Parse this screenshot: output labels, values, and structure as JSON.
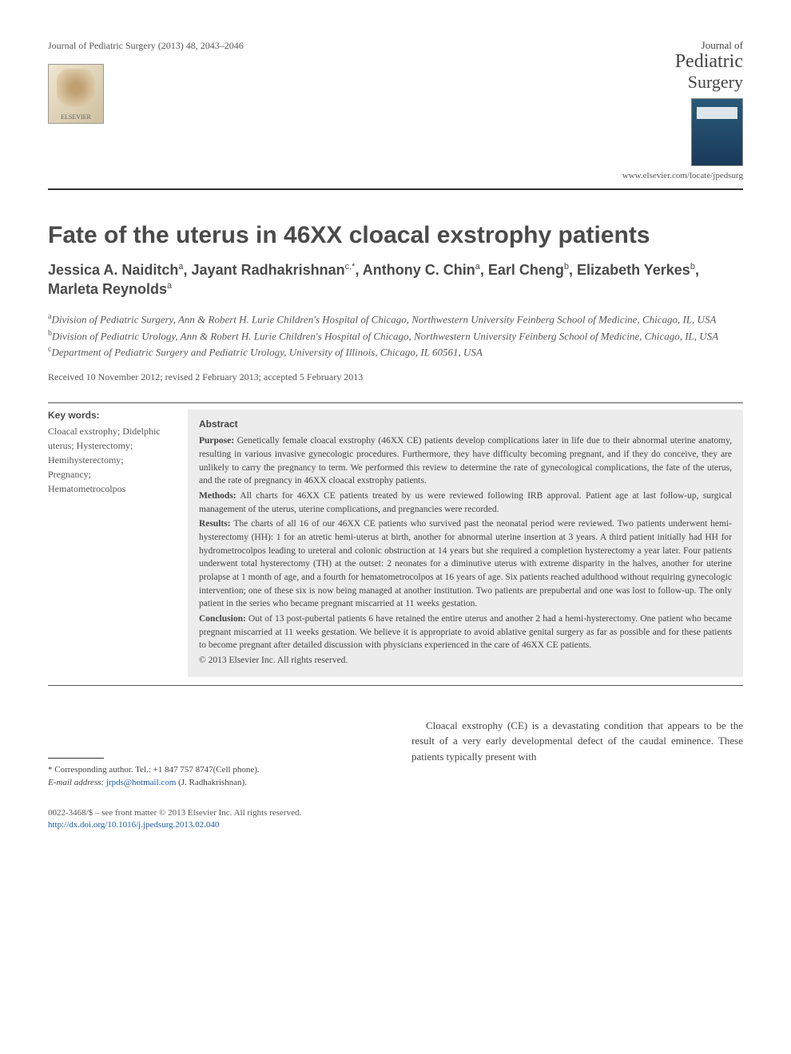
{
  "header": {
    "journal_ref": "Journal of Pediatric Surgery (2013) 48, 2043–2046",
    "publisher": "ELSEVIER",
    "journal_title_small": "Journal of",
    "journal_title_large": "Pediatric",
    "journal_title_med": "Surgery",
    "locate_url": "www.elsevier.com/locate/jpedsurg"
  },
  "article": {
    "title": "Fate of the uterus in 46XX cloacal exstrophy patients",
    "authors_html": "Jessica A. Naiditch<sup>a</sup>, Jayant Radhakrishnan<sup>c,*</sup>, Anthony C. Chin<sup>a</sup>, Earl Cheng<sup>b</sup>, Elizabeth Yerkes<sup>b</sup>, Marleta Reynolds<sup>a</sup>",
    "affiliations": [
      "<sup>a</sup>Division of Pediatric Surgery, Ann & Robert H. Lurie Children's Hospital of Chicago, Northwestern University Feinberg School of Medicine, Chicago, IL, USA",
      "<sup>b</sup>Division of Pediatric Urology, Ann & Robert H. Lurie Children's Hospital of Chicago, Northwestern University Feinberg School of Medicine, Chicago, IL, USA",
      "<sup>c</sup>Department of Pediatric Surgery and Pediatric Urology, University of Illinois, Chicago, IL 60561, USA"
    ],
    "dates": "Received 10 November 2012; revised 2 February 2013; accepted 5 February 2013"
  },
  "keywords": {
    "heading": "Key words:",
    "items": "Cloacal exstrophy; Didelphic uterus; Hysterectomy; Hemihysterectomy; Pregnancy; Hematometrocolpos"
  },
  "abstract": {
    "heading": "Abstract",
    "purpose_label": "Purpose:",
    "purpose": " Genetically female cloacal exstrophy (46XX CE) patients develop complications later in life due to their abnormal uterine anatomy, resulting in various invasive gynecologic procedures. Furthermore, they have difficulty becoming pregnant, and if they do conceive, they are unlikely to carry the pregnancy to term. We performed this review to determine the rate of gynecological complications, the fate of the uterus, and the rate of pregnancy in 46XX cloacal exstrophy patients.",
    "methods_label": "Methods:",
    "methods": " All charts for 46XX CE patients treated by us were reviewed following IRB approval. Patient age at last follow-up, surgical management of the uterus, uterine complications, and pregnancies were recorded.",
    "results_label": "Results:",
    "results": " The charts of all 16 of our 46XX CE patients who survived past the neonatal period were reviewed. Two patients underwent hemi-hysterectomy (HH): 1 for an atretic hemi-uterus at birth, another for abnormal uterine insertion at 3 years. A third patient initially had HH for hydrometrocolpos leading to ureteral and colonic obstruction at 14 years but she required a completion hysterectomy a year later. Four patients underwent total hysterectomy (TH) at the outset: 2 neonates for a diminutive uterus with extreme disparity in the halves, another for uterine prolapse at 1 month of age, and a fourth for hematometrocolpos at 16 years of age. Six patients reached adulthood without requiring gynecologic intervention; one of these six is now being managed at another institution. Two patients are prepubertal and one was lost to follow-up. The only patient in the series who became pregnant miscarried at 11 weeks gestation.",
    "conclusion_label": "Conclusion:",
    "conclusion": " Out of 13 post-pubertal patients 6 have retained the entire uterus and another 2 had a hemi-hysterectomy. One patient who became pregnant miscarried at 11 weeks gestation. We believe it is appropriate to avoid ablative genital surgery as far as possible and for these patients to become pregnant after detailed discussion with physicians experienced in the care of 46XX CE patients.",
    "copyright": "© 2013 Elsevier Inc. All rights reserved."
  },
  "body": {
    "intro": "Cloacal exstrophy (CE) is a devastating condition that appears to be the result of a very early developmental defect of the caudal eminence. These patients typically present with"
  },
  "footnote": {
    "corresponding": "* Corresponding author. Tel.: +1 847 757 8747(Cell phone).",
    "email_label": "E-mail address:",
    "email": "jrpds@hotmail.com",
    "email_attribution": " (J. Radhakrishnan)."
  },
  "footer": {
    "issn_line": "0022-3468/$ – see front matter © 2013 Elsevier Inc. All rights reserved.",
    "doi": "http://dx.doi.org/10.1016/j.jpedsurg.2013.02.040"
  },
  "colors": {
    "text_main": "#3a3a3a",
    "text_muted": "#555555",
    "link": "#1a5aaa",
    "abstract_bg": "#ececec",
    "rule": "#333333"
  }
}
